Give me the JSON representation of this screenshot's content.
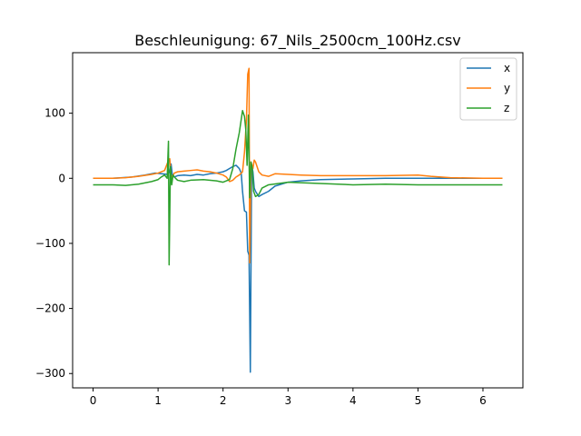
{
  "chart_data": {
    "type": "line",
    "title": "Beschleunigung: 67_Nils_2500cm_100Hz.csv",
    "xlabel": "",
    "ylabel": "",
    "xlim": [
      -0.315,
      6.615
    ],
    "ylim": [
      -322,
      193
    ],
    "xticks": [
      0,
      1,
      2,
      3,
      4,
      5,
      6
    ],
    "xtick_labels": [
      "0",
      "1",
      "2",
      "3",
      "4",
      "5",
      "6"
    ],
    "yticks": [
      -300,
      -200,
      -100,
      0,
      100
    ],
    "ytick_labels": [
      "−300",
      "−200",
      "−100",
      "0",
      "100"
    ],
    "grid": false,
    "legend": "top-right",
    "series": [
      {
        "name": "x",
        "color": "#1f77b4",
        "x": [
          0,
          0.3,
          0.6,
          0.8,
          0.95,
          1.05,
          1.15,
          1.18,
          1.2,
          1.22,
          1.25,
          1.3,
          1.4,
          1.5,
          1.6,
          1.7,
          1.8,
          1.9,
          2.0,
          2.05,
          2.1,
          2.15,
          2.2,
          2.25,
          2.28,
          2.3,
          2.33,
          2.36,
          2.38,
          2.4,
          2.42,
          2.44,
          2.46,
          2.48,
          2.5,
          2.55,
          2.6,
          2.7,
          2.8,
          3.0,
          3.2,
          3.5,
          4.0,
          4.5,
          5.0,
          5.5,
          6.0,
          6.3
        ],
        "values": [
          0,
          0,
          2,
          5,
          8,
          7,
          6,
          10,
          22,
          5,
          2,
          4,
          5,
          4,
          6,
          5,
          7,
          8,
          10,
          12,
          15,
          18,
          20,
          15,
          8,
          -20,
          -50,
          -52,
          -112,
          -118,
          -298,
          20,
          10,
          -15,
          -20,
          -28,
          -25,
          -20,
          -12,
          -6,
          -4,
          -2,
          -1,
          0,
          0,
          0,
          0,
          0
        ]
      },
      {
        "name": "y",
        "color": "#ff7f0e",
        "x": [
          0,
          0.3,
          0.5,
          0.7,
          0.9,
          1.0,
          1.1,
          1.15,
          1.18,
          1.2,
          1.22,
          1.25,
          1.3,
          1.4,
          1.5,
          1.6,
          1.7,
          1.8,
          1.9,
          2.0,
          2.05,
          2.1,
          2.15,
          2.2,
          2.25,
          2.3,
          2.33,
          2.36,
          2.38,
          2.4,
          2.41,
          2.42,
          2.43,
          2.44,
          2.46,
          2.48,
          2.5,
          2.55,
          2.6,
          2.7,
          2.8,
          3.0,
          3.2,
          3.5,
          4.0,
          4.5,
          5.0,
          5.2,
          5.5,
          6.0,
          6.3
        ],
        "values": [
          0,
          0,
          1,
          3,
          6,
          8,
          12,
          25,
          30,
          5,
          2,
          8,
          10,
          11,
          12,
          13,
          11,
          10,
          8,
          5,
          2,
          -5,
          -3,
          2,
          5,
          10,
          40,
          90,
          160,
          169,
          -130,
          -60,
          25,
          22,
          15,
          28,
          25,
          10,
          5,
          3,
          7,
          6,
          5,
          4,
          4,
          4,
          5,
          3,
          1,
          0,
          0
        ]
      },
      {
        "name": "z",
        "color": "#2ca02c",
        "x": [
          0,
          0.3,
          0.5,
          0.7,
          0.9,
          1.0,
          1.05,
          1.1,
          1.14,
          1.16,
          1.17,
          1.19,
          1.21,
          1.23,
          1.25,
          1.3,
          1.4,
          1.5,
          1.7,
          1.9,
          2.0,
          2.1,
          2.15,
          2.2,
          2.25,
          2.3,
          2.33,
          2.35,
          2.37,
          2.39,
          2.41,
          2.43,
          2.45,
          2.47,
          2.5,
          2.55,
          2.6,
          2.7,
          3.0,
          3.5,
          4.0,
          4.5,
          5.0,
          5.5,
          6.0,
          6.3
        ],
        "values": [
          -10,
          -10,
          -11,
          -9,
          -5,
          -2,
          2,
          5,
          0,
          57,
          -133,
          18,
          -10,
          5,
          2,
          -3,
          -5,
          -3,
          -2,
          -4,
          -6,
          -2,
          15,
          45,
          70,
          104,
          95,
          75,
          20,
          97,
          -30,
          25,
          15,
          -20,
          -28,
          -25,
          -15,
          -10,
          -6,
          -8,
          -10,
          -9,
          -10,
          -10,
          -10,
          -10
        ]
      }
    ]
  }
}
